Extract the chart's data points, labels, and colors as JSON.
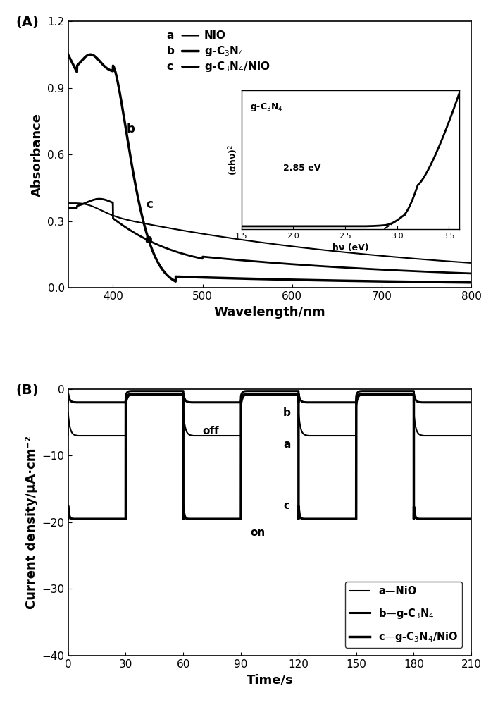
{
  "panel_A": {
    "title": "(A)",
    "xlabel": "Wavelength/nm",
    "ylabel": "Absorbance",
    "xlim": [
      350,
      800
    ],
    "ylim": [
      0.0,
      1.2
    ],
    "xticks": [
      400,
      500,
      600,
      700,
      800
    ],
    "yticks": [
      0.0,
      0.3,
      0.6,
      0.9,
      1.2
    ],
    "inset": {
      "xlabel": "hν (eV)",
      "ylabel": "(αhν)²",
      "title": "g-C₃N₄",
      "annotation": "2.85 eV",
      "xticks": [
        1.5,
        2.0,
        2.5,
        3.0,
        3.5
      ]
    }
  },
  "panel_B": {
    "title": "(B)",
    "xlabel": "Time/s",
    "ylabel": "Current density/μA·cm⁻²",
    "xlim": [
      0,
      210
    ],
    "ylim": [
      -40,
      0
    ],
    "xticks": [
      0,
      30,
      60,
      90,
      120,
      150,
      180,
      210
    ],
    "yticks": [
      0,
      -10,
      -20,
      -30,
      -40
    ]
  },
  "figure": {
    "bg_color": "white",
    "dpi": 100,
    "figsize": [
      6.9,
      10.0
    ]
  }
}
